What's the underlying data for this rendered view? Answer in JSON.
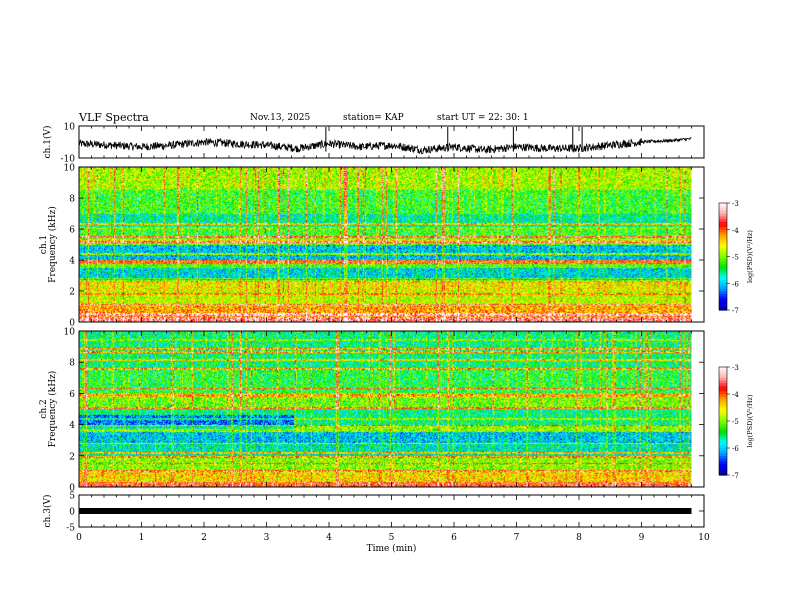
{
  "header": {
    "title": "VLF Spectra",
    "date": "Nov.13, 2025",
    "station": "station= KAP",
    "start": "start  UT =   22: 30: 1"
  },
  "colors": {
    "colormap": [
      "#00009a",
      "#0000ff",
      "#00a0ff",
      "#00ffff",
      "#00e000",
      "#80ff00",
      "#ffff00",
      "#ffa000",
      "#ff0000",
      "#ffb0b0",
      "#ffffff"
    ]
  },
  "chart_data": [
    {
      "type": "line",
      "ylabel": "ch.1(V)",
      "ylim": [
        -10,
        10
      ],
      "y_ticklabels": [
        "10",
        "-10"
      ],
      "xlim": [
        0,
        10
      ],
      "x_end_min": 9.8,
      "points": [
        [
          0,
          -1
        ],
        [
          0.5,
          -2
        ],
        [
          1,
          -3
        ],
        [
          1.5,
          -2
        ],
        [
          2,
          0
        ],
        [
          2.5,
          -1
        ],
        [
          3,
          -2
        ],
        [
          3.5,
          -4
        ],
        [
          4,
          -1
        ],
        [
          4.5,
          -3
        ],
        [
          5,
          -2
        ],
        [
          5.5,
          -5
        ],
        [
          6,
          -3
        ],
        [
          6.5,
          -5
        ],
        [
          7,
          -3
        ],
        [
          7.5,
          -4
        ],
        [
          8,
          -4
        ],
        [
          8.5,
          -2
        ],
        [
          9,
          0
        ],
        [
          9.5,
          1
        ],
        [
          9.8,
          2
        ]
      ]
    },
    {
      "type": "heatmap",
      "ylabel": "ch.1\nFrequency (kHz)",
      "ylim": [
        0,
        10
      ],
      "y_ticklabels": [
        "0",
        "2",
        "4",
        "6",
        "8",
        "10"
      ],
      "xlim": [
        0,
        10
      ],
      "colorbar": {
        "label": "log(PSD)(V²/Hz)",
        "range": [
          -7,
          -3
        ],
        "ticklabels": [
          "-3",
          "-4",
          "-5",
          "-6",
          "-7"
        ]
      },
      "bands": [
        {
          "from": 0,
          "to": 0.3,
          "level": -3.5
        },
        {
          "from": 0.3,
          "to": 1.0,
          "level": -4.3
        },
        {
          "from": 1.0,
          "to": 2.0,
          "level": -4.8
        },
        {
          "from": 2.0,
          "to": 2.5,
          "level": -4.6
        },
        {
          "from": 2.5,
          "to": 3.5,
          "level": -5.9
        },
        {
          "from": 3.5,
          "to": 4.0,
          "level": -5.2
        },
        {
          "from": 4.0,
          "to": 5.0,
          "level": -6.0
        },
        {
          "from": 5.0,
          "to": 5.4,
          "level": -5.1
        },
        {
          "from": 5.4,
          "to": 6.0,
          "level": -5.3
        },
        {
          "from": 6.0,
          "to": 7.0,
          "level": -5.7
        },
        {
          "from": 7.0,
          "to": 8.5,
          "level": -5.3
        },
        {
          "from": 8.5,
          "to": 10,
          "level": -4.9
        }
      ]
    },
    {
      "type": "heatmap",
      "ylabel": "ch.2\nFrequency (kHz)",
      "ylim": [
        0,
        10
      ],
      "y_ticklabels": [
        "0",
        "2",
        "4",
        "6",
        "8",
        "10"
      ],
      "xlim": [
        0,
        10
      ],
      "colorbar": {
        "label": "log(PSD)(V²/Hz)",
        "range": [
          -7,
          -3
        ],
        "ticklabels": [
          "-3",
          "-4",
          "-5",
          "-6",
          "-7"
        ]
      },
      "bands": [
        {
          "from": 0,
          "to": 0.3,
          "level": -3.8
        },
        {
          "from": 0.3,
          "to": 1.0,
          "level": -4.5
        },
        {
          "from": 1.0,
          "to": 2.0,
          "level": -5.0
        },
        {
          "from": 2.0,
          "to": 2.8,
          "level": -5.8
        },
        {
          "from": 2.8,
          "to": 3.5,
          "level": -6.0
        },
        {
          "from": 3.5,
          "to": 4.0,
          "level": -5.0
        },
        {
          "from": 4.0,
          "to": 5.0,
          "level": -5.6
        },
        {
          "from": 5.0,
          "to": 6.0,
          "level": -5.1
        },
        {
          "from": 6.0,
          "to": 7.5,
          "level": -5.4
        },
        {
          "from": 7.5,
          "to": 10,
          "level": -5.6
        }
      ]
    },
    {
      "type": "line",
      "ylabel": "ch.3(V)",
      "ylim": [
        -5,
        5
      ],
      "y_ticklabels": [
        "5",
        "0",
        "-5"
      ],
      "xlim": [
        0,
        10
      ],
      "x_end_min": 9.8,
      "points": [
        [
          0,
          0
        ],
        [
          9.8,
          0
        ]
      ]
    }
  ],
  "xaxis": {
    "label": "Time  (min)",
    "ticklabels": [
      "0",
      "1",
      "2",
      "3",
      "4",
      "5",
      "6",
      "7",
      "8",
      "9",
      "10"
    ]
  }
}
